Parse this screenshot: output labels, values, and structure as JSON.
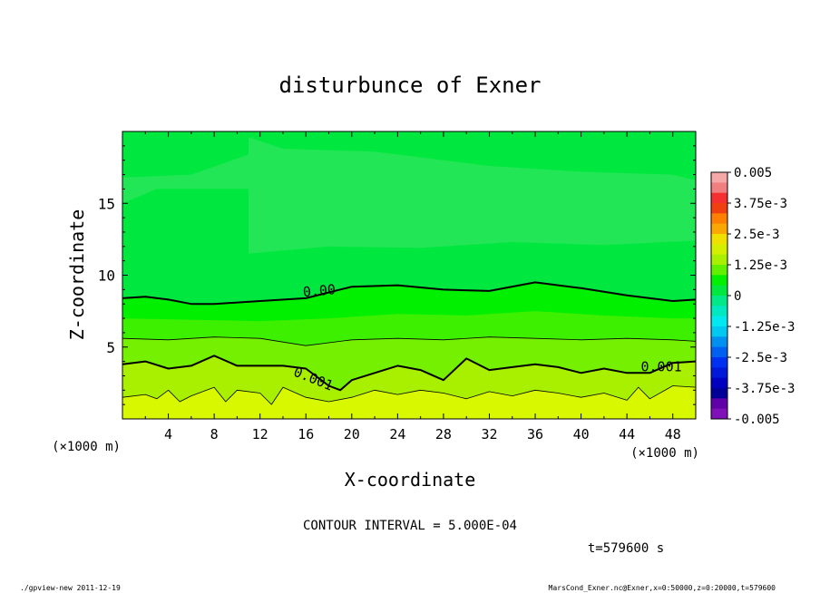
{
  "chart_data": {
    "type": "contour",
    "title": "disturbunce of Exner",
    "xlabel": "X-coordinate",
    "ylabel": "Z-coordinate",
    "x_unit": "(×1000 m)",
    "xlim": [
      0,
      50
    ],
    "ylim": [
      0,
      20
    ],
    "x_ticks": [
      4,
      8,
      12,
      16,
      20,
      24,
      28,
      32,
      36,
      40,
      44,
      48
    ],
    "y_ticks": [
      5,
      10,
      15
    ],
    "contour_interval_text": "CONTOUR INTERVAL = 5.000E-04",
    "time_text": "t=579600 s",
    "colorbar": {
      "labels": [
        "0.005",
        "3.75e-3",
        "2.5e-3",
        "1.25e-3",
        "0",
        "-1.25e-3",
        "-2.5e-3",
        "-3.75e-3",
        "-0.005"
      ],
      "range": [
        -0.005,
        0.005
      ]
    },
    "contour_lines": [
      {
        "level": 0.0,
        "label": "0.00",
        "weight": "bold",
        "points": [
          [
            0,
            8.4
          ],
          [
            2,
            8.5
          ],
          [
            4,
            8.3
          ],
          [
            6,
            8.0
          ],
          [
            8,
            8.0
          ],
          [
            12,
            8.2
          ],
          [
            16,
            8.4
          ],
          [
            20,
            9.2
          ],
          [
            24,
            9.3
          ],
          [
            28,
            9.0
          ],
          [
            32,
            8.9
          ],
          [
            36,
            9.5
          ],
          [
            40,
            9.1
          ],
          [
            44,
            8.6
          ],
          [
            48,
            8.2
          ],
          [
            50,
            8.3
          ]
        ]
      },
      {
        "level": 0.0005,
        "label": "",
        "weight": "thin",
        "points": [
          [
            0,
            5.6
          ],
          [
            4,
            5.5
          ],
          [
            8,
            5.7
          ],
          [
            12,
            5.6
          ],
          [
            16,
            5.1
          ],
          [
            20,
            5.5
          ],
          [
            24,
            5.6
          ],
          [
            28,
            5.5
          ],
          [
            32,
            5.7
          ],
          [
            36,
            5.6
          ],
          [
            40,
            5.5
          ],
          [
            44,
            5.6
          ],
          [
            48,
            5.5
          ],
          [
            50,
            5.4
          ]
        ]
      },
      {
        "level": 0.001,
        "label": "0.001",
        "weight": "bold",
        "points": [
          [
            0,
            3.8
          ],
          [
            2,
            4.0
          ],
          [
            4,
            3.5
          ],
          [
            6,
            3.7
          ],
          [
            8,
            4.4
          ],
          [
            10,
            3.7
          ],
          [
            12,
            3.7
          ],
          [
            14,
            3.7
          ],
          [
            16,
            3.5
          ],
          [
            18,
            2.3
          ],
          [
            19,
            2.0
          ],
          [
            20,
            2.7
          ],
          [
            22,
            3.2
          ],
          [
            24,
            3.7
          ],
          [
            26,
            3.4
          ],
          [
            28,
            2.7
          ],
          [
            30,
            4.2
          ],
          [
            32,
            3.4
          ],
          [
            34,
            3.6
          ],
          [
            36,
            3.8
          ],
          [
            38,
            3.6
          ],
          [
            40,
            3.2
          ],
          [
            42,
            3.5
          ],
          [
            44,
            3.2
          ],
          [
            46,
            3.2
          ],
          [
            48,
            3.9
          ],
          [
            50,
            4.0
          ]
        ]
      },
      {
        "level": 0.0015,
        "label": "",
        "weight": "thin",
        "points": [
          [
            0,
            1.5
          ],
          [
            2,
            1.7
          ],
          [
            3,
            1.4
          ],
          [
            4,
            2.0
          ],
          [
            5,
            1.2
          ],
          [
            6,
            1.6
          ],
          [
            8,
            2.2
          ],
          [
            9,
            1.2
          ],
          [
            10,
            2.0
          ],
          [
            12,
            1.8
          ],
          [
            13,
            1.0
          ],
          [
            14,
            2.2
          ],
          [
            16,
            1.5
          ],
          [
            18,
            1.2
          ],
          [
            20,
            1.5
          ],
          [
            22,
            2.0
          ],
          [
            24,
            1.7
          ],
          [
            26,
            2.0
          ],
          [
            28,
            1.8
          ],
          [
            30,
            1.4
          ],
          [
            32,
            1.9
          ],
          [
            34,
            1.6
          ],
          [
            36,
            2.0
          ],
          [
            38,
            1.8
          ],
          [
            40,
            1.5
          ],
          [
            42,
            1.8
          ],
          [
            44,
            1.3
          ],
          [
            45,
            2.2
          ],
          [
            46,
            1.4
          ],
          [
            48,
            2.3
          ],
          [
            50,
            2.2
          ]
        ]
      }
    ],
    "colors": {
      "level_-0.001": "#22e655",
      "level_-0.0005": "#00e840",
      "level_0": "#00f000",
      "level_0.0005": "#3cf000",
      "level_0.001": "#74f000",
      "level_0.0015": "#a8f000",
      "level_0.002": "#d8f800"
    }
  },
  "footer": {
    "left": "./gpview-new   2011-12-19",
    "right": "MarsCond_Exner.nc@Exner,x=0:50000,z=0:20000,t=579600"
  }
}
